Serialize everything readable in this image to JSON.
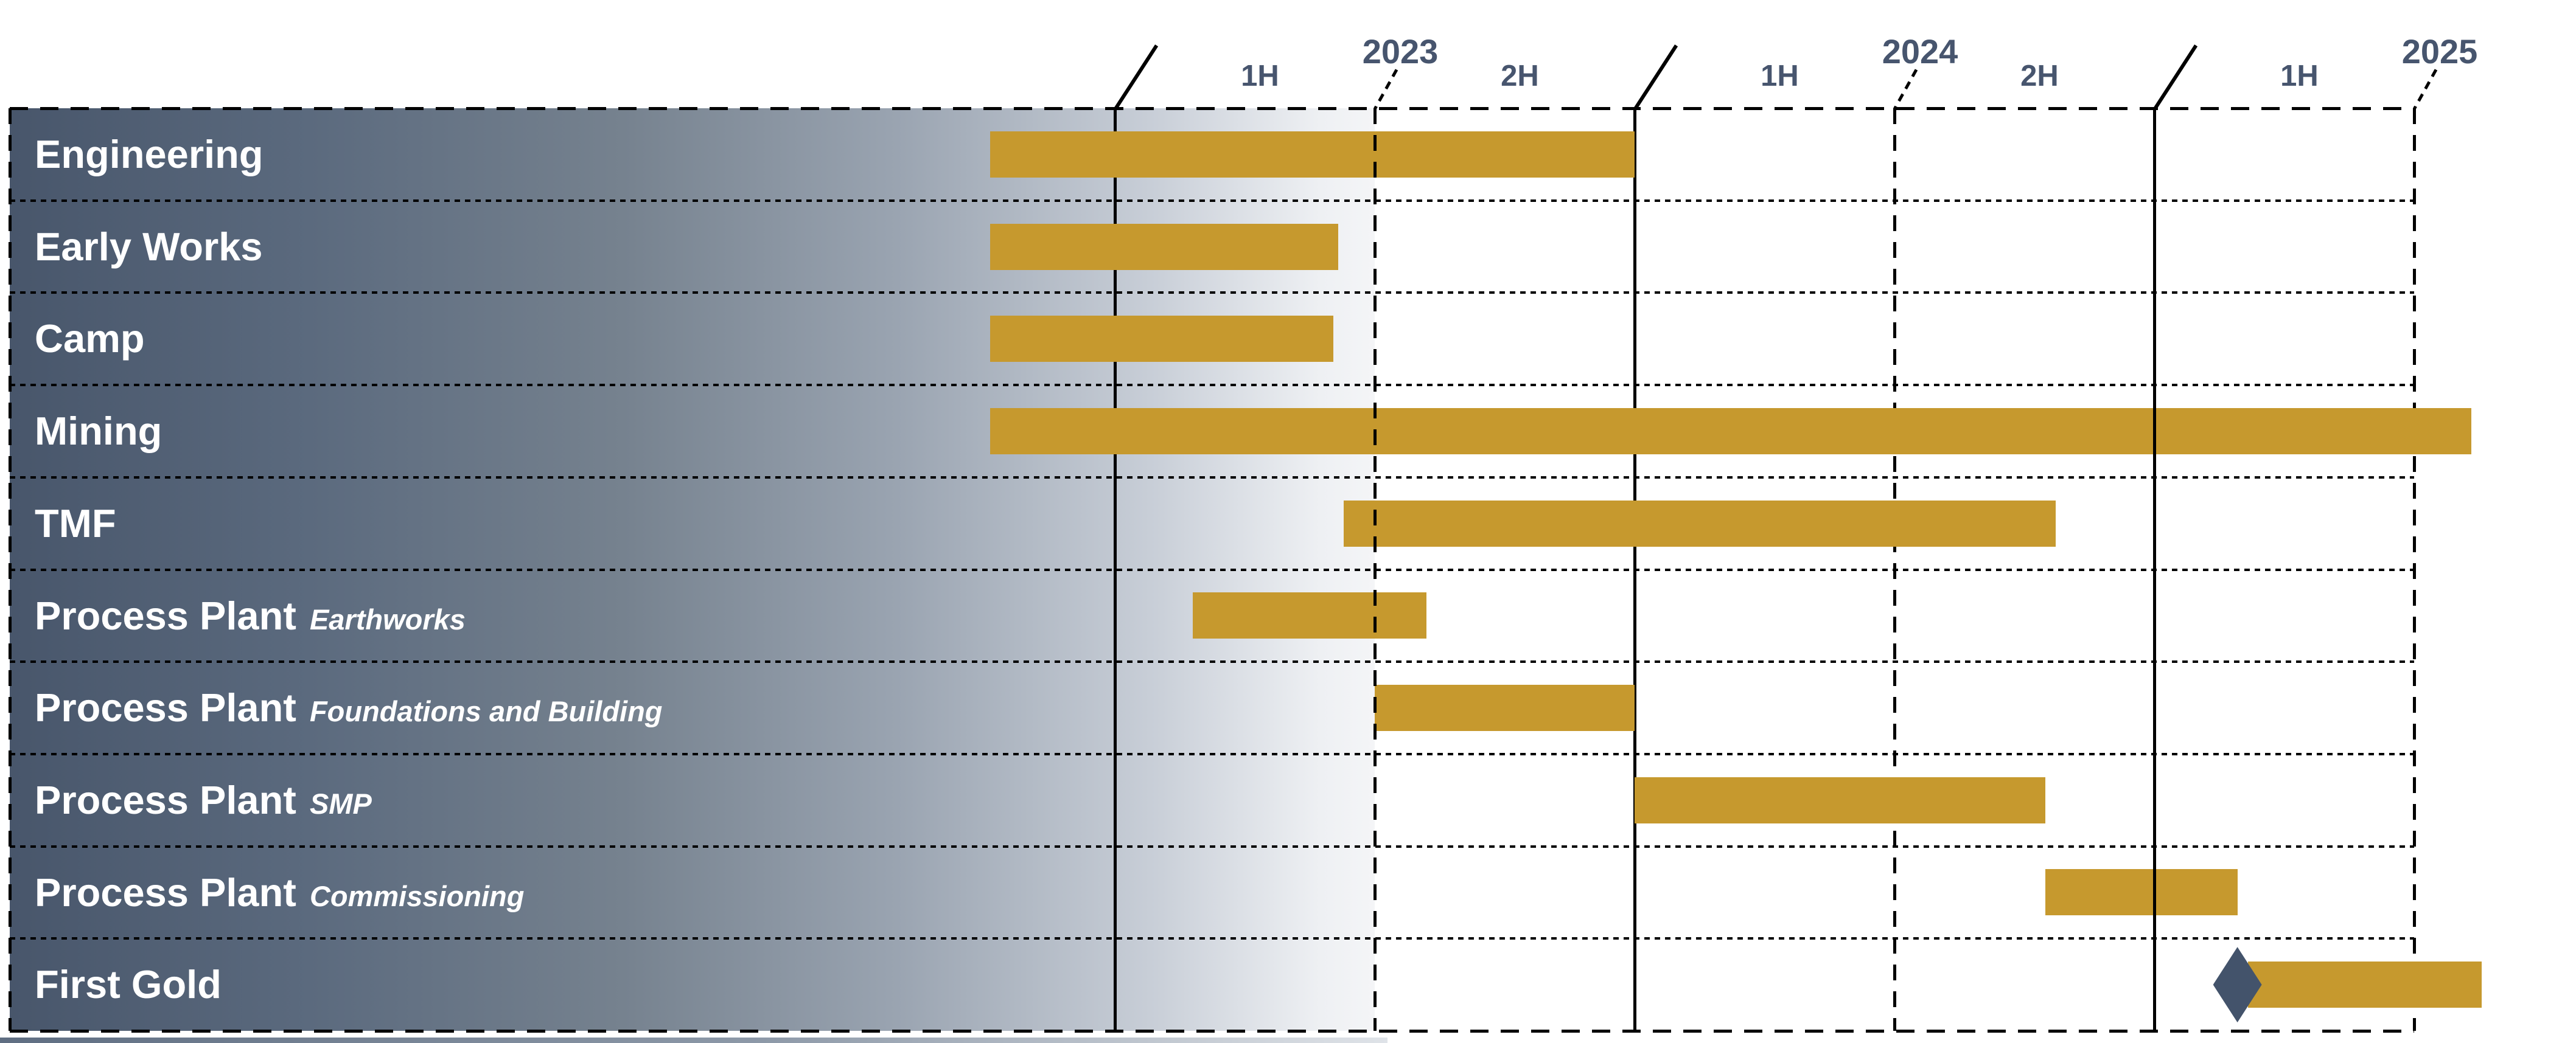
{
  "colors": {
    "bar": "#C6992E",
    "milestone": "#43536B",
    "header_text": "#47556E",
    "panel_dark": "#48566B",
    "panel_light": "#F4F5F7",
    "line": "#000000",
    "label_text": "#FFFFFF"
  },
  "chart_data": {
    "type": "bar",
    "subtype": "gantt-timeline",
    "title": "",
    "x_axis": {
      "unit": "decimal_year",
      "range_start": 2022.71,
      "range_end": 2025.81,
      "solid_gridlines": [
        2023,
        2024,
        2025
      ],
      "dashed_gridlines": [
        2023.5,
        2024.5,
        2025.5
      ],
      "front_gridlines": [
        2023.5,
        2025
      ],
      "year_labels": [
        {
          "label": "2023",
          "at": 2023.5
        },
        {
          "label": "2024",
          "at": 2024.5
        },
        {
          "label": "2025",
          "at": 2025.5
        }
      ],
      "half_labels": [
        {
          "label": "1H",
          "mid": 2023.25
        },
        {
          "label": "2H",
          "mid": 2023.75
        },
        {
          "label": "1H",
          "mid": 2024.25
        },
        {
          "label": "2H",
          "mid": 2024.75
        },
        {
          "label": "1H",
          "mid": 2025.25
        }
      ]
    },
    "tasks": [
      {
        "name": "Engineering",
        "qualifier": "",
        "start": 2022.76,
        "end": 2024.0
      },
      {
        "name": "Early Works",
        "qualifier": "",
        "start": 2022.76,
        "end": 2023.43
      },
      {
        "name": "Camp",
        "qualifier": "",
        "start": 2022.76,
        "end": 2023.42
      },
      {
        "name": "Mining",
        "qualifier": "",
        "start": 2022.76,
        "end": 2025.61
      },
      {
        "name": "TMF",
        "qualifier": "",
        "start": 2023.44,
        "end": 2024.81
      },
      {
        "name": "Process Plant",
        "qualifier": "Earthworks",
        "start": 2023.15,
        "end": 2023.6
      },
      {
        "name": "Process Plant",
        "qualifier": "Foundations and Building",
        "start": 2023.5,
        "end": 2024.0
      },
      {
        "name": "Process Plant",
        "qualifier": "SMP",
        "start": 2024.0,
        "end": 2024.79
      },
      {
        "name": "Process Plant",
        "qualifier": "Commissioning",
        "start": 2024.79,
        "end": 2025.16
      },
      {
        "name": "First Gold",
        "qualifier": "",
        "start": 2025.18,
        "end": 2025.63
      }
    ],
    "milestone": {
      "task": "First Gold",
      "shape": "diamond",
      "at": 2025.16
    }
  }
}
